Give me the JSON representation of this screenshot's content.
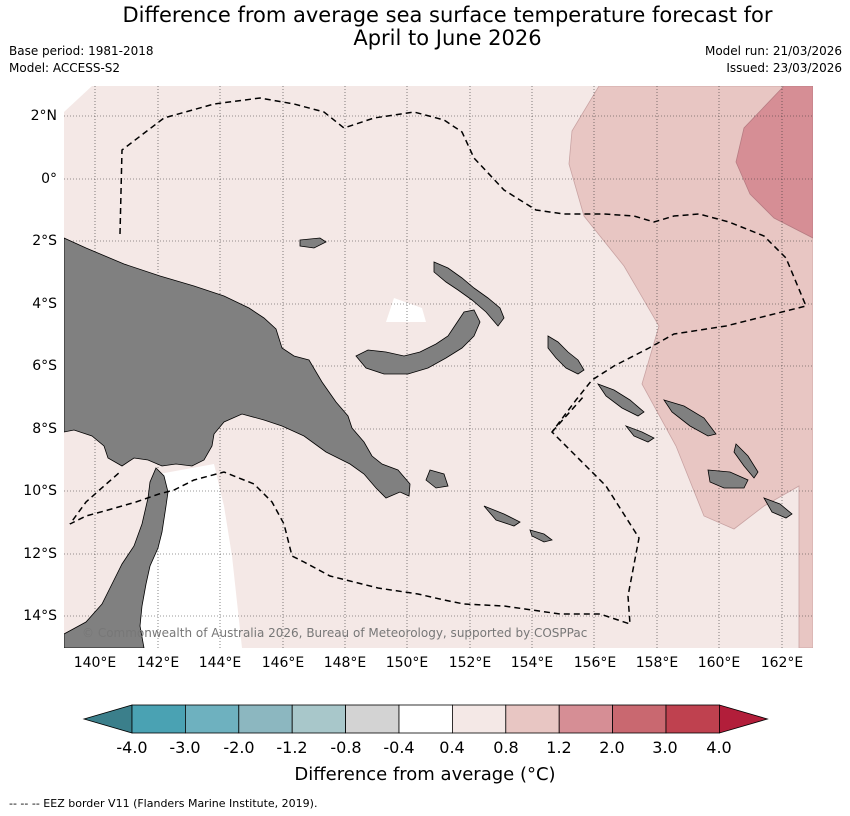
{
  "header": {
    "title_line1": "Difference from average sea surface temperature forecast for",
    "title_line2": "April to June 2026",
    "base_period": "Base period: 1981-2018",
    "model": "Model: ACCESS-S2",
    "model_run": "Model run: 21/03/2026",
    "issued": "Issued: 23/03/2026"
  },
  "map": {
    "lat_labels": [
      "2°N",
      "0°",
      "2°S",
      "4°S",
      "6°S",
      "8°S",
      "10°S",
      "12°S",
      "14°S"
    ],
    "lon_labels": [
      "140°E",
      "142°E",
      "144°E",
      "146°E",
      "148°E",
      "150°E",
      "152°E",
      "154°E",
      "156°E",
      "158°E",
      "160°E",
      "162°E"
    ],
    "copyright": "© Commonwealth of Australia 2026, Bureau of Meteorology, supported by COSPPac",
    "colors": {
      "land": "#808080",
      "anom_0_4_0_8": "#f4e8e6",
      "anom_0_8_1_2": "#e8c6c3",
      "anom_1_2_2_0": "#d68e95"
    }
  },
  "colorbar": {
    "tick_labels": [
      "-4.0",
      "-3.0",
      "-2.0",
      "-1.2",
      "-0.8",
      "-0.4",
      "0.4",
      "0.8",
      "1.2",
      "2.0",
      "3.0",
      "4.0"
    ],
    "colors": [
      "#3b7f8b",
      "#4aa2b3",
      "#6eb1bf",
      "#8cb7c0",
      "#a8c7ca",
      "#d3d3d3",
      "#ffffff",
      "#f4e8e6",
      "#e8c6c3",
      "#d68e95",
      "#c96870",
      "#bf414f",
      "#b21e3a"
    ],
    "title": "Difference from average (°C)"
  },
  "legend": {
    "note": "--  --  -- EEZ border V11 (Flanders Marine Institute, 2019)."
  }
}
